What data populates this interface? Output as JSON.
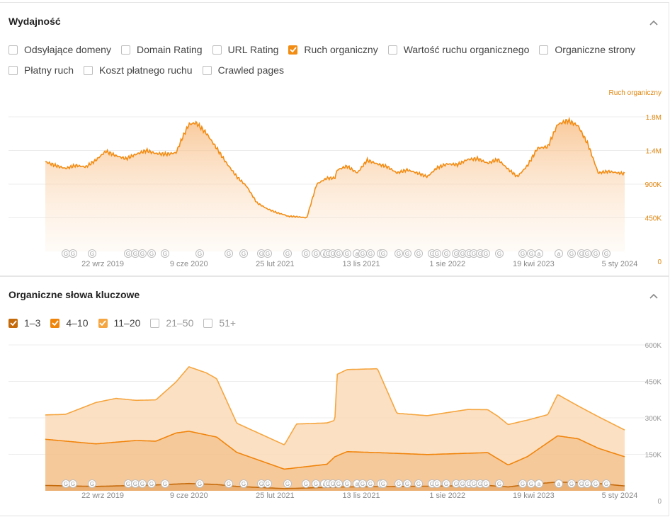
{
  "performance": {
    "title": "Wydajność",
    "checkboxes": [
      {
        "label": "Odsyłające domeny",
        "checked": false
      },
      {
        "label": "Domain Rating",
        "checked": false
      },
      {
        "label": "URL Rating",
        "checked": false
      },
      {
        "label": "Ruch organiczny",
        "checked": true,
        "color": "#f28c13"
      },
      {
        "label": "Wartość ruchu organicznego",
        "checked": false
      },
      {
        "label": "Organiczne strony",
        "checked": false
      },
      {
        "label": "Płatny ruch",
        "checked": false
      },
      {
        "label": "Koszt płatnego ruchu",
        "checked": false
      },
      {
        "label": "Crawled pages",
        "checked": false
      }
    ]
  },
  "keywords": {
    "title": "Organiczne słowa kluczowe",
    "checkboxes": [
      {
        "label": "1–3",
        "checked": true,
        "color": "#c56a0b"
      },
      {
        "label": "4–10",
        "checked": true,
        "color": "#f0850c"
      },
      {
        "label": "11–20",
        "checked": true,
        "color": "#f5a640"
      },
      {
        "label": "21–50",
        "checked": false
      },
      {
        "label": "51+",
        "checked": false
      }
    ]
  },
  "markers": [
    "G",
    "G",
    "G",
    "G",
    "G",
    "G",
    "G",
    "G",
    "G",
    "G",
    "G",
    "G",
    "G",
    "G",
    "G",
    "G",
    "a",
    "G",
    "G",
    "G",
    "G",
    "a",
    "G",
    "G",
    "a",
    "G",
    "G",
    "G",
    "G",
    "G",
    "G",
    "G",
    "G",
    "G",
    "G",
    "G",
    "G",
    "G",
    "G",
    "G",
    "G",
    "a",
    "a",
    "G",
    "G",
    "G",
    "G",
    "G"
  ],
  "colors": {
    "accent": "#f28c13",
    "dark": "#c56a0b",
    "mid": "#f0850c",
    "light": "#f5a640"
  },
  "chart_data": [
    {
      "type": "area",
      "series": [
        {
          "name": "Ruch organiczny",
          "x": [
            "2019-04-01",
            "2019-05-01",
            "2019-06-01",
            "2019-07-01",
            "2019-08-01",
            "2019-09-01",
            "2019-10-01",
            "2019-11-01",
            "2019-12-01",
            "2020-01-01",
            "2020-02-01",
            "2020-03-01",
            "2020-04-01",
            "2020-05-01",
            "2020-05-20",
            "2020-06-09",
            "2020-07-01",
            "2020-08-01",
            "2020-09-01",
            "2020-10-01",
            "2020-11-01",
            "2020-12-01",
            "2021-01-01",
            "2021-02-01",
            "2021-03-01",
            "2021-03-25",
            "2021-04-05",
            "2021-05-01",
            "2021-06-01",
            "2021-07-01",
            "2021-08-01",
            "2021-08-25",
            "2021-09-01",
            "2021-10-01",
            "2021-11-01",
            "2021-12-01",
            "2022-01-01",
            "2022-02-01",
            "2022-03-01",
            "2022-04-01",
            "2022-05-01",
            "2022-06-01",
            "2022-07-01",
            "2022-08-01",
            "2022-09-01",
            "2022-10-01",
            "2022-11-01",
            "2022-12-01",
            "2023-01-01",
            "2023-02-01",
            "2023-03-01",
            "2023-04-01",
            "2023-05-01",
            "2023-06-01",
            "2023-07-01",
            "2023-08-01",
            "2023-09-01",
            "2023-10-01",
            "2023-11-01",
            "2023-12-01",
            "2024-01-01",
            "2024-01-20"
          ],
          "values": [
            1200000,
            1150000,
            1110000,
            1150000,
            1130000,
            1220000,
            1340000,
            1280000,
            1240000,
            1300000,
            1350000,
            1310000,
            1300000,
            1320000,
            1520000,
            1700000,
            1720000,
            1580000,
            1380000,
            1180000,
            1000000,
            870000,
            650000,
            570000,
            520000,
            490000,
            470000,
            465000,
            450000,
            900000,
            980000,
            980000,
            1090000,
            1140000,
            1050000,
            1220000,
            1170000,
            1130000,
            1050000,
            1090000,
            1050000,
            1000000,
            1120000,
            1170000,
            1160000,
            1230000,
            1240000,
            1180000,
            1230000,
            1100000,
            1000000,
            1150000,
            1380000,
            1400000,
            1700000,
            1750000,
            1680000,
            1430000,
            1050000,
            1070000,
            1050000,
            1040000
          ]
        }
      ],
      "ylim": [
        0,
        1800000
      ],
      "yticks": [
        "0",
        "450K",
        "900K",
        "1.4M",
        "1.8M"
      ],
      "xticks": [
        "22 wrz 2019",
        "9 cze 2020",
        "25 lut 2021",
        "13 lis 2021",
        "1 sie 2022",
        "19 kwi 2023",
        "5 sty 2024"
      ],
      "legend": "Ruch organiczny",
      "grid": true
    },
    {
      "type": "area",
      "stacked": true,
      "series": [
        {
          "name": "1–3",
          "x": [
            "2019-04-01",
            "2019-09-01",
            "2020-01-01",
            "2020-03-01",
            "2020-06-09",
            "2020-09-01",
            "2020-11-01",
            "2021-03-25",
            "2021-08-25",
            "2021-10-01",
            "2022-01-01",
            "2022-06-01",
            "2022-12-01",
            "2023-02-01",
            "2023-04-01",
            "2023-07-01",
            "2023-09-01",
            "2023-11-01",
            "2024-01-20"
          ],
          "values": [
            22000,
            18000,
            22000,
            24000,
            30000,
            26000,
            18000,
            9000,
            15000,
            16000,
            17000,
            19000,
            22000,
            16000,
            26000,
            36000,
            34000,
            30000,
            20000
          ]
        },
        {
          "name": "4–10",
          "x": [
            "2019-04-01",
            "2019-09-01",
            "2020-01-01",
            "2020-03-01",
            "2020-05-01",
            "2020-06-09",
            "2020-09-01",
            "2020-11-01",
            "2021-03-25",
            "2021-08-01",
            "2021-08-25",
            "2021-10-01",
            "2022-01-01",
            "2022-06-01",
            "2022-12-01",
            "2023-02-01",
            "2023-04-01",
            "2023-07-01",
            "2023-09-01",
            "2023-11-01",
            "2024-01-20"
          ],
          "values": [
            190000,
            175000,
            185000,
            180000,
            210000,
            215000,
            195000,
            140000,
            80000,
            95000,
            125000,
            145000,
            140000,
            130000,
            135000,
            90000,
            115000,
            190000,
            180000,
            145000,
            120000
          ]
        },
        {
          "name": "11–20",
          "x": [
            "2019-04-01",
            "2019-06-01",
            "2019-09-01",
            "2019-11-01",
            "2020-01-01",
            "2020-03-01",
            "2020-05-01",
            "2020-06-09",
            "2020-08-01",
            "2020-09-01",
            "2020-11-01",
            "2021-03-25",
            "2021-05-01",
            "2021-08-01",
            "2021-08-25",
            "2021-09-01",
            "2022-01-01",
            "2022-03-01",
            "2022-06-01",
            "2022-10-01",
            "2023-01-01",
            "2023-04-01",
            "2023-06-01",
            "2023-07-01",
            "2023-09-01",
            "2023-11-01",
            "2024-01-20"
          ],
          "values": [
            100000,
            110000,
            170000,
            180000,
            165000,
            170000,
            210000,
            265000,
            255000,
            240000,
            120000,
            100000,
            180000,
            170000,
            150000,
            335000,
            345000,
            165000,
            160000,
            180000,
            175000,
            150000,
            115000,
            170000,
            135000,
            130000,
            110000
          ]
        }
      ],
      "ylim": [
        0,
        600000
      ],
      "yticks": [
        "0",
        "150K",
        "300K",
        "450K",
        "600K"
      ],
      "xticks": [
        "22 wrz 2019",
        "9 cze 2020",
        "25 lut 2021",
        "13 lis 2021",
        "1 sie 2022",
        "19 kwi 2023",
        "5 sty 2024"
      ],
      "grid": true
    }
  ]
}
